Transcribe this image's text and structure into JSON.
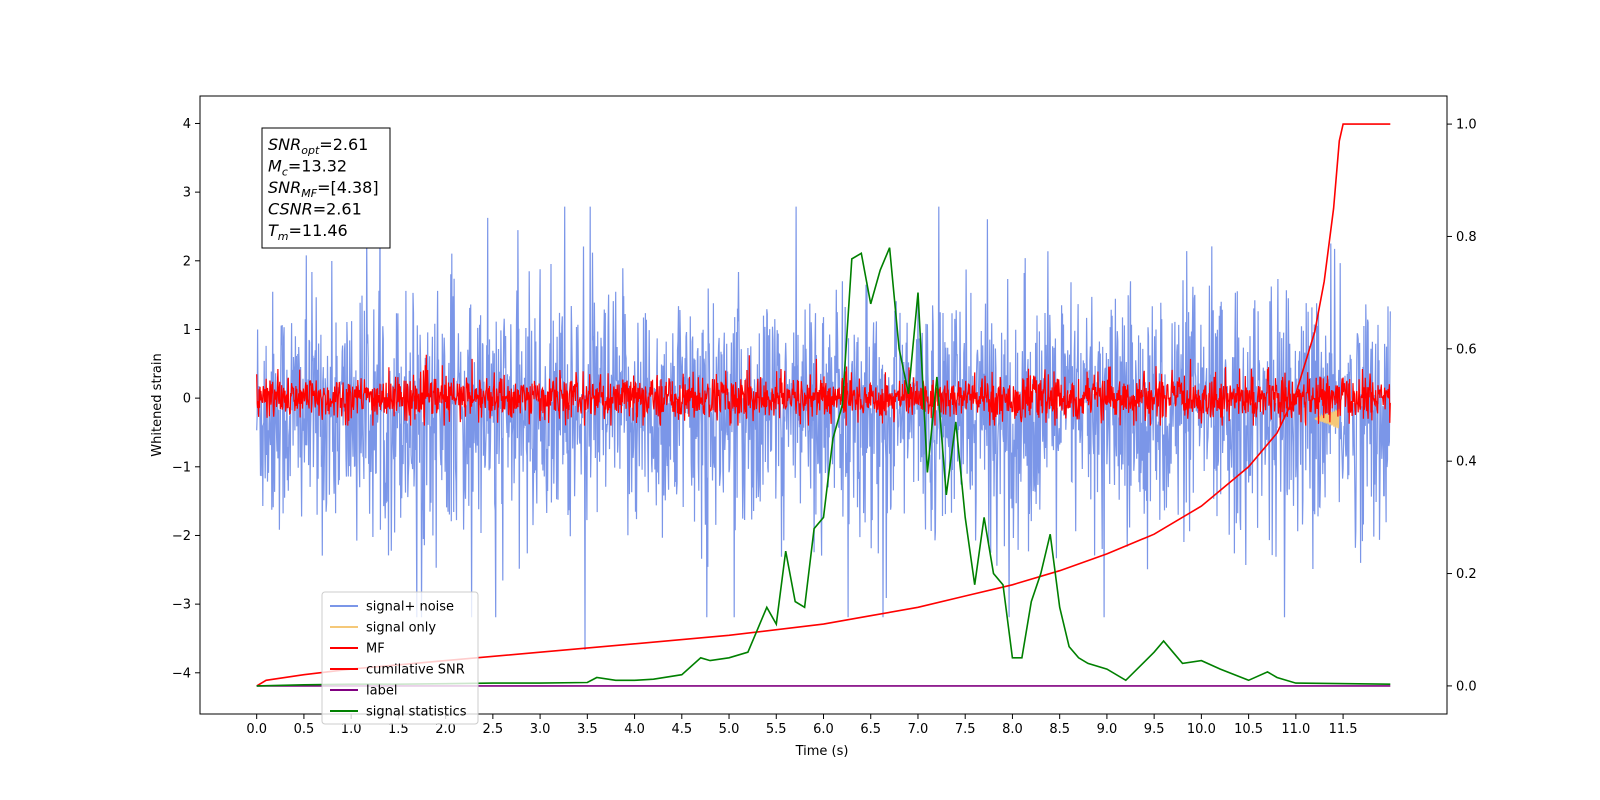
{
  "chart_data": {
    "type": "line",
    "xlabel": "Time (s)",
    "ylabel": "Whitened strain",
    "xlim": [
      -0.6,
      12.6
    ],
    "ylim": [
      -4.6,
      4.4
    ],
    "y2lim": [
      -0.05,
      1.05
    ],
    "x_ticks": [
      0.0,
      0.5,
      1.0,
      1.5,
      2.0,
      2.5,
      3.0,
      3.5,
      4.0,
      4.5,
      5.0,
      5.5,
      6.0,
      6.5,
      7.0,
      7.5,
      8.0,
      8.5,
      9.0,
      9.5,
      10.0,
      10.5,
      11.0,
      11.5
    ],
    "x_tick_labels": [
      "0.0",
      "0.5",
      "1.0",
      "1.5",
      "2.0",
      "2.5",
      "3.0",
      "3.5",
      "4.0",
      "4.5",
      "5.0",
      "5.5",
      "6.0",
      "6.5",
      "7.0",
      "7.5",
      "8.0",
      "8.5",
      "9.0",
      "9.5",
      "10.0",
      "10.5",
      "11.0",
      "11.5"
    ],
    "y_ticks": [
      4,
      3,
      2,
      1,
      0,
      -1,
      -2,
      -3,
      -4
    ],
    "y_tick_labels": [
      "4",
      "3",
      "2",
      "1",
      "0",
      "−1",
      "−2",
      "−3",
      "−4"
    ],
    "y2_ticks": [
      1.0,
      0.8,
      0.6,
      0.4,
      0.2,
      0.0
    ],
    "y2_tick_labels": [
      "1.0",
      "0.8",
      "0.6",
      "0.4",
      "0.2",
      "0.0"
    ],
    "grid": false,
    "legend_position": "lower-left",
    "annotation": {
      "lines": [
        {
          "base": "SNR",
          "sub": "opt",
          "value": "=2.61"
        },
        {
          "base": "M",
          "sub": "c",
          "value": "=13.32"
        },
        {
          "base": "SNR",
          "sub": "MF",
          "value": "=[4.38]"
        },
        {
          "base": "CSNR",
          "sub": "",
          "value": "=2.61"
        },
        {
          "base": "T",
          "sub": "m",
          "value": "=11.46"
        }
      ]
    },
    "series": [
      {
        "name": "signal+ noise",
        "color": "#7b96e8",
        "axis": "left",
        "kind": "noise",
        "x_range": [
          0,
          12
        ],
        "center": -0.2,
        "amplitude": 1.15,
        "spike_min": -4.15,
        "spike_max": 4.0
      },
      {
        "name": "signal only",
        "color": "#f5c878",
        "axis": "left",
        "kind": "burst",
        "x_range": [
          11.2,
          11.46
        ],
        "center": -0.3,
        "amplitude": 0.15
      },
      {
        "name": "MF",
        "color": "#ff0000",
        "axis": "left",
        "kind": "noise",
        "x_range": [
          0,
          12
        ],
        "center": 0.0,
        "amplitude": 0.22,
        "spike_min": -0.4,
        "spike_max": 1.0
      },
      {
        "name": "cumilative SNR",
        "color": "#ff0000",
        "axis": "right",
        "kind": "curve",
        "x": [
          0.0,
          0.1,
          0.5,
          1.0,
          2.0,
          3.0,
          4.0,
          5.0,
          6.0,
          6.5,
          7.0,
          7.5,
          8.0,
          8.5,
          9.0,
          9.5,
          10.0,
          10.5,
          10.8,
          11.0,
          11.2,
          11.3,
          11.4,
          11.46,
          11.5,
          12.0
        ],
        "y": [
          0.0,
          0.01,
          0.02,
          0.03,
          0.045,
          0.06,
          0.075,
          0.09,
          0.11,
          0.125,
          0.14,
          0.16,
          0.18,
          0.205,
          0.235,
          0.27,
          0.32,
          0.39,
          0.45,
          0.52,
          0.63,
          0.72,
          0.85,
          0.97,
          1.0,
          1.0
        ]
      },
      {
        "name": "label",
        "color": "#800080",
        "axis": "right",
        "kind": "curve",
        "x": [
          0.0,
          12.0
        ],
        "y": [
          0.0,
          0.0
        ]
      },
      {
        "name": "signal statistics",
        "color": "#008000",
        "axis": "right",
        "kind": "curve",
        "x": [
          0.0,
          0.5,
          1.0,
          1.5,
          2.0,
          2.5,
          3.0,
          3.5,
          3.6,
          3.8,
          4.0,
          4.2,
          4.5,
          4.7,
          4.8,
          5.0,
          5.2,
          5.3,
          5.4,
          5.5,
          5.6,
          5.7,
          5.8,
          5.9,
          6.0,
          6.1,
          6.2,
          6.3,
          6.4,
          6.5,
          6.6,
          6.7,
          6.8,
          6.9,
          7.0,
          7.1,
          7.2,
          7.3,
          7.4,
          7.5,
          7.6,
          7.7,
          7.8,
          7.9,
          8.0,
          8.1,
          8.2,
          8.3,
          8.4,
          8.5,
          8.6,
          8.7,
          8.8,
          9.0,
          9.2,
          9.5,
          9.6,
          9.7,
          9.8,
          10.0,
          10.2,
          10.5,
          10.7,
          10.8,
          11.0,
          12.0
        ],
        "y": [
          0.0,
          0.002,
          0.003,
          0.003,
          0.004,
          0.005,
          0.005,
          0.006,
          0.015,
          0.01,
          0.01,
          0.012,
          0.02,
          0.05,
          0.045,
          0.05,
          0.06,
          0.1,
          0.14,
          0.11,
          0.24,
          0.15,
          0.14,
          0.28,
          0.3,
          0.44,
          0.5,
          0.76,
          0.77,
          0.68,
          0.74,
          0.78,
          0.6,
          0.52,
          0.7,
          0.38,
          0.55,
          0.34,
          0.47,
          0.3,
          0.18,
          0.3,
          0.2,
          0.18,
          0.05,
          0.05,
          0.15,
          0.2,
          0.27,
          0.14,
          0.07,
          0.05,
          0.04,
          0.03,
          0.01,
          0.06,
          0.08,
          0.06,
          0.04,
          0.045,
          0.03,
          0.01,
          0.025,
          0.015,
          0.005,
          0.003
        ]
      }
    ]
  }
}
